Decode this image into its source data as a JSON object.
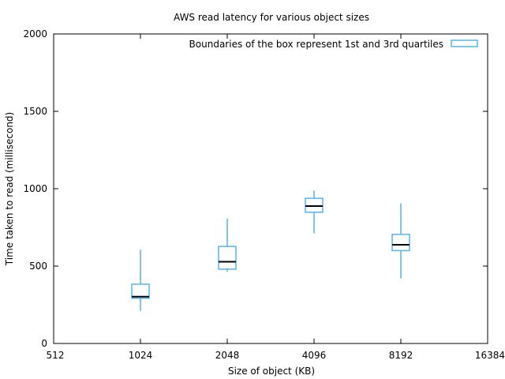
{
  "chart_data": {
    "type": "boxplot",
    "title": "AWS read latency for various object sizes",
    "xlabel": "Size of object (KB)",
    "ylabel": "Time taken to read (millisecond)",
    "x_scale": "log2",
    "xlim": [
      512,
      16384
    ],
    "ylim": [
      0,
      2000
    ],
    "x_ticks": [
      512,
      1024,
      2048,
      4096,
      8192,
      16384
    ],
    "y_ticks": [
      0,
      500,
      1000,
      1500,
      2000
    ],
    "legend": {
      "label": "Boundaries of the box represent 1st and 3rd quartiles",
      "placement": "top-right"
    },
    "grid": false,
    "colors": {
      "box": "#56b4e9",
      "median": "#000000"
    },
    "boxes": [
      {
        "x": 1024,
        "whisker_low": 210,
        "q1": 292,
        "median": 302,
        "q3": 383,
        "whisker_high": 606
      },
      {
        "x": 2048,
        "whisker_low": 463,
        "q1": 480,
        "median": 528,
        "q3": 627,
        "whisker_high": 808
      },
      {
        "x": 4096,
        "whisker_low": 712,
        "q1": 848,
        "median": 888,
        "q3": 938,
        "whisker_high": 988
      },
      {
        "x": 8192,
        "whisker_low": 420,
        "q1": 600,
        "median": 638,
        "q3": 705,
        "whisker_high": 905
      }
    ]
  }
}
